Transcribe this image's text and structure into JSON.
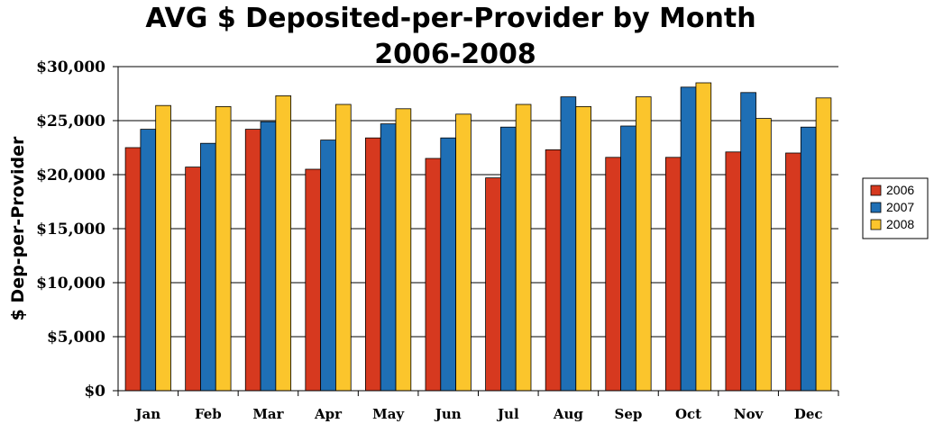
{
  "chart_data": {
    "type": "bar",
    "title_line1": "AVG $ Deposited-per-Provider by Month",
    "title_line2": "2006-2008",
    "xlabel": "",
    "ylabel": "$ Dep-per-Provider",
    "ylim": [
      0,
      30000
    ],
    "yticks": [
      0,
      5000,
      10000,
      15000,
      20000,
      25000,
      30000
    ],
    "ytick_labels": [
      "$0",
      "$5,000",
      "$10,000",
      "$15,000",
      "$20,000",
      "$25,000",
      "$30,000"
    ],
    "grid": true,
    "legend_position": "right",
    "categories": [
      "Jan",
      "Feb",
      "Mar",
      "Apr",
      "May",
      "Jun",
      "Jul",
      "Aug",
      "Sep",
      "Oct",
      "Nov",
      "Dec"
    ],
    "series": [
      {
        "name": "2006",
        "color": "#d6391f",
        "values": [
          22500,
          20700,
          24200,
          20500,
          23400,
          21500,
          19700,
          22300,
          21600,
          21600,
          22100,
          22000
        ]
      },
      {
        "name": "2007",
        "color": "#1f6fb5",
        "values": [
          24200,
          22900,
          24900,
          23200,
          24700,
          23400,
          24400,
          27200,
          24500,
          28100,
          27600,
          24400
        ]
      },
      {
        "name": "2008",
        "color": "#fbc52c",
        "values": [
          26400,
          26300,
          27300,
          26500,
          26100,
          25600,
          26500,
          26300,
          27200,
          28500,
          25200,
          27100
        ]
      }
    ]
  }
}
